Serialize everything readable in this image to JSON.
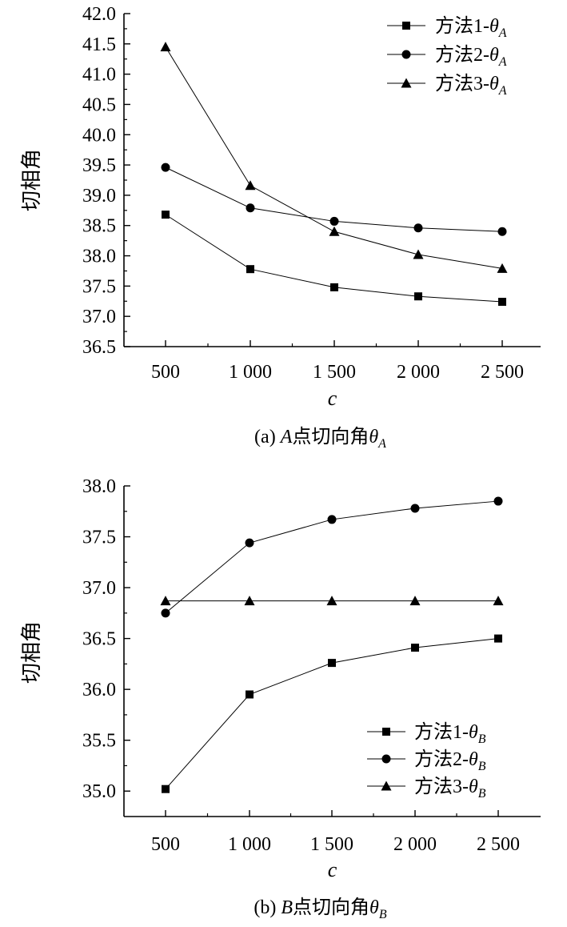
{
  "chart_data": [
    {
      "type": "line",
      "id": "a",
      "caption": {
        "prefix": "(a) ",
        "point": "A",
        "middle": "点切向角",
        "symbol": "θ",
        "subscript": "A"
      },
      "xlabel": "c",
      "ylabel": "切相角",
      "categories": [
        "500",
        "1 000",
        "1 500",
        "2 000",
        "2 500"
      ],
      "ylim": [
        36.5,
        42.0
      ],
      "yticks": [
        "36.5",
        "37.0",
        "37.5",
        "38.0",
        "38.5",
        "39.0",
        "39.5",
        "40.0",
        "40.5",
        "41.0",
        "41.5",
        "42.0"
      ],
      "legend_position": "top-right",
      "series": [
        {
          "name": "方法1",
          "symbol": "θ",
          "subscript": "A",
          "marker": "square",
          "values": [
            38.68,
            37.78,
            37.48,
            37.33,
            37.24
          ]
        },
        {
          "name": "方法2",
          "symbol": "θ",
          "subscript": "A",
          "marker": "circle",
          "values": [
            39.46,
            38.79,
            38.57,
            38.46,
            38.4
          ]
        },
        {
          "name": "方法3",
          "symbol": "θ",
          "subscript": "A",
          "marker": "triangle",
          "values": [
            41.45,
            39.16,
            38.4,
            38.02,
            37.79
          ]
        }
      ]
    },
    {
      "type": "line",
      "id": "b",
      "caption": {
        "prefix": "(b) ",
        "point": "B",
        "middle": "点切向角",
        "symbol": "θ",
        "subscript": "B"
      },
      "xlabel": "c",
      "ylabel": "切相角",
      "categories": [
        "500",
        "1 000",
        "1 500",
        "2 000",
        "2 500"
      ],
      "ylim": [
        34.75,
        38.0
      ],
      "yticks": [
        "35.0",
        "35.5",
        "36.0",
        "36.5",
        "37.0",
        "37.5",
        "38.0"
      ],
      "legend_position": "bottom-right",
      "series": [
        {
          "name": "方法1",
          "symbol": "θ",
          "subscript": "B",
          "marker": "square",
          "values": [
            35.02,
            35.95,
            36.26,
            36.41,
            36.5
          ]
        },
        {
          "name": "方法2",
          "symbol": "θ",
          "subscript": "B",
          "marker": "circle",
          "values": [
            36.75,
            37.44,
            37.67,
            37.78,
            37.85
          ]
        },
        {
          "name": "方法3",
          "symbol": "θ",
          "subscript": "B",
          "marker": "triangle",
          "values": [
            36.87,
            36.87,
            36.87,
            36.87,
            36.87
          ]
        }
      ]
    }
  ]
}
